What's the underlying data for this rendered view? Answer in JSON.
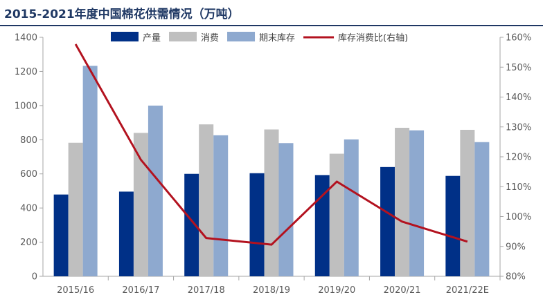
{
  "header": {
    "title": "2015-2021年度中国棉花供需情况（万吨）"
  },
  "chart_data": {
    "type": "bar",
    "categories": [
      "2015/16",
      "2016/17",
      "2017/18",
      "2018/19",
      "2019/20",
      "2020/21",
      "2021/22E"
    ],
    "series": [
      {
        "name": "产量",
        "type": "bar",
        "axis": "left",
        "color": "#003087",
        "values": [
          479,
          496,
          600,
          604,
          593,
          640,
          588
        ]
      },
      {
        "name": "消费",
        "type": "bar",
        "axis": "left",
        "color": "#bfbfbf",
        "values": [
          782,
          840,
          890,
          860,
          718,
          870,
          858
        ]
      },
      {
        "name": "期末库存",
        "type": "bar",
        "axis": "left",
        "color": "#8ea9cf",
        "values": [
          1233,
          1000,
          826,
          780,
          802,
          855,
          786
        ]
      },
      {
        "name": "库存消费比(右轴)",
        "type": "line",
        "axis": "right",
        "color": "#b3121f",
        "values": [
          157.7,
          119.0,
          92.8,
          90.6,
          111.7,
          98.3,
          91.6
        ]
      }
    ],
    "yleft": {
      "min": 0,
      "max": 1400,
      "ticks": [
        0,
        200,
        400,
        600,
        800,
        1000,
        1200,
        1400
      ]
    },
    "yright": {
      "min": 80,
      "max": 160,
      "ticks": [
        "80%",
        "90%",
        "100%",
        "110%",
        "120%",
        "130%",
        "140%",
        "150%",
        "160%"
      ]
    },
    "legend": "top",
    "grid": false
  }
}
